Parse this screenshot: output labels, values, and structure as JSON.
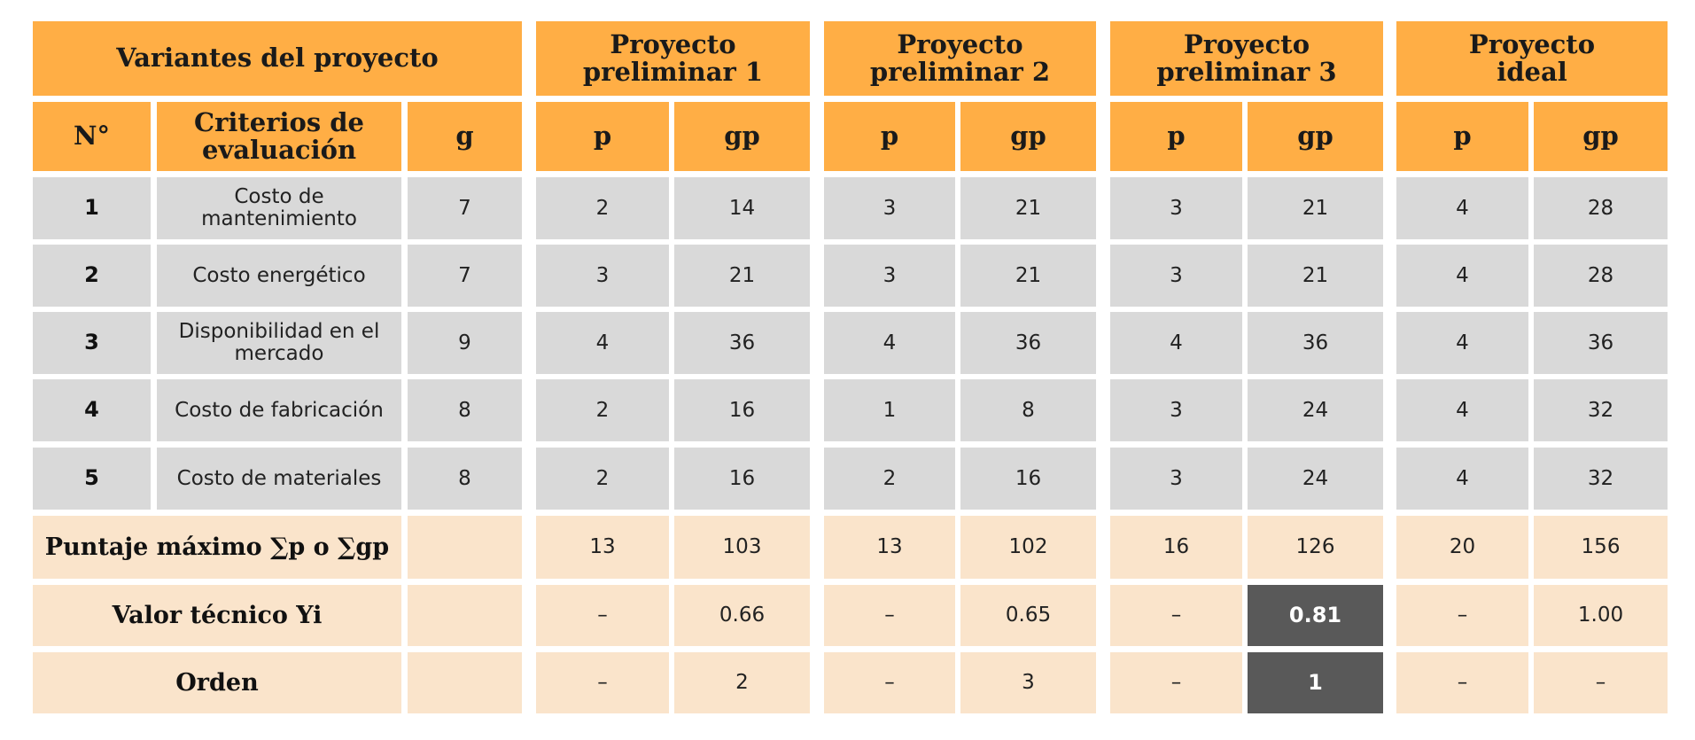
{
  "header": {
    "variants_title": "Variantes del proyecto",
    "projects": [
      {
        "name": "Proyecto preliminar 1"
      },
      {
        "name": "Proyecto preliminar 2"
      },
      {
        "name": "Proyecto preliminar 3"
      },
      {
        "name": "Proyecto ideal"
      }
    ],
    "col_no": "N°",
    "col_criteria": "Criterios de evaluación",
    "col_g": "g",
    "col_p": "p",
    "col_gp": "gp"
  },
  "rows": [
    {
      "n": "1",
      "criterion": "Costo de mantenimiento",
      "g": "7",
      "values": [
        "2",
        "14",
        "3",
        "21",
        "3",
        "21",
        "4",
        "28"
      ]
    },
    {
      "n": "2",
      "criterion": "Costo energético",
      "g": "7",
      "values": [
        "3",
        "21",
        "3",
        "21",
        "3",
        "21",
        "4",
        "28"
      ]
    },
    {
      "n": "3",
      "criterion": "Disponibilidad en el mercado",
      "g": "9",
      "values": [
        "4",
        "36",
        "4",
        "36",
        "4",
        "36",
        "4",
        "36"
      ]
    },
    {
      "n": "4",
      "criterion": "Costo de fabricación",
      "g": "8",
      "values": [
        "2",
        "16",
        "1",
        "8",
        "3",
        "24",
        "4",
        "32"
      ]
    },
    {
      "n": "5",
      "criterion": "Costo de materiales",
      "g": "8",
      "values": [
        "2",
        "16",
        "2",
        "16",
        "3",
        "24",
        "4",
        "32"
      ]
    }
  ],
  "summary": [
    {
      "label": "Puntaje máximo ∑p o ∑gp",
      "values": [
        "13",
        "103",
        "13",
        "102",
        "16",
        "126",
        "20",
        "156"
      ]
    },
    {
      "label": "Valor técnico Yi",
      "values": [
        "–",
        "0.66",
        "–",
        "0.65",
        "–",
        "0.81",
        "–",
        "1.00"
      ]
    },
    {
      "label": "Orden",
      "values": [
        "–",
        "2",
        "–",
        "3",
        "–",
        "1",
        "–",
        "–"
      ]
    }
  ],
  "colors": {
    "header": "#FFAE45",
    "body": "#D9D9D9",
    "summary": "#FAE4CB",
    "highlight": "#595959"
  }
}
